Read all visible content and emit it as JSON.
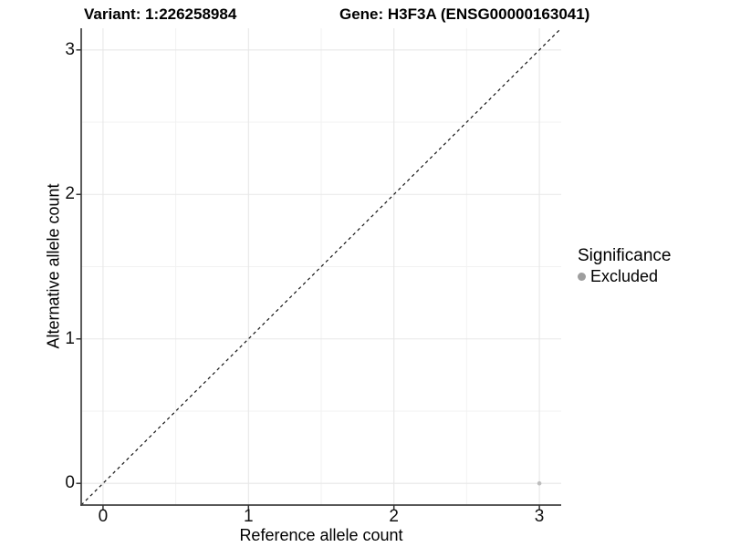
{
  "chart_data": {
    "type": "scatter",
    "title_left": "Variant: 1:226258984",
    "title_right": "Gene: H3F3A (ENSG00000163041)",
    "xlabel": "Reference allele count",
    "ylabel": "Alternative allele count",
    "xlim": [
      -0.15,
      3.15
    ],
    "ylim": [
      -0.15,
      3.15
    ],
    "x_ticks": [
      0,
      1,
      2,
      3
    ],
    "y_ticks": [
      0,
      1,
      2,
      3
    ],
    "x_minor_ticks": [
      0.5,
      1.5,
      2.5
    ],
    "y_minor_ticks": [
      0.5,
      1.5,
      2.5
    ],
    "grid": true,
    "points": [
      {
        "x": 3,
        "y": 0,
        "series": "Excluded"
      }
    ],
    "identity_line": {
      "style": "dashed",
      "from": [
        -0.15,
        -0.15
      ],
      "to": [
        3.15,
        3.15
      ]
    },
    "legend": {
      "title": "Significance",
      "position": "right",
      "entries": [
        {
          "label": "Excluded",
          "color": "#9e9e9e",
          "marker": "circle"
        }
      ]
    },
    "colors": {
      "point": "#bdbdbd",
      "grid_major": "#e7e7e7",
      "grid_minor": "#f2f2f2",
      "axis_line": "#404040",
      "tick_mark": "#333333",
      "dashed_line": "#141414",
      "background": "#ffffff"
    }
  }
}
